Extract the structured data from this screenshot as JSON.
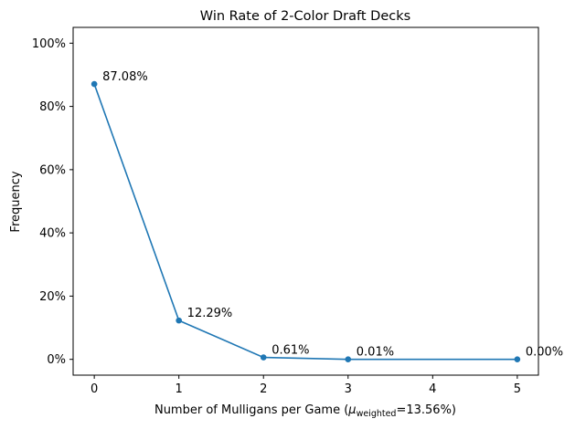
{
  "chart_data": {
    "type": "line",
    "title": "Win Rate of 2-Color Draft Decks",
    "xlabel": {
      "prefix": "Number of Mulligans per Game (",
      "symbol": "μ",
      "subscript": "weighted",
      "suffix": "=13.56%)"
    },
    "ylabel": "Frequency",
    "x": [
      0,
      1,
      2,
      3,
      4,
      5
    ],
    "xticks": [
      "0",
      "1",
      "2",
      "3",
      "4",
      "5"
    ],
    "xlim": [
      -0.25,
      5.25
    ],
    "ylim": [
      -0.05,
      1.05
    ],
    "yticks": [
      {
        "value": 0.0,
        "label": "0%"
      },
      {
        "value": 0.2,
        "label": "20%"
      },
      {
        "value": 0.4,
        "label": "40%"
      },
      {
        "value": 0.6,
        "label": "60%"
      },
      {
        "value": 0.8,
        "label": "80%"
      },
      {
        "value": 1.0,
        "label": "100%"
      }
    ],
    "grid": false,
    "series": [
      {
        "x": [
          0,
          1,
          2,
          3,
          5
        ],
        "values": [
          0.8708,
          0.1229,
          0.0061,
          0.0001,
          0.0
        ],
        "labels": [
          "87.08%",
          "12.29%",
          "0.61%",
          "0.01%",
          "0.00%"
        ],
        "color": "#1f77b4"
      }
    ]
  }
}
